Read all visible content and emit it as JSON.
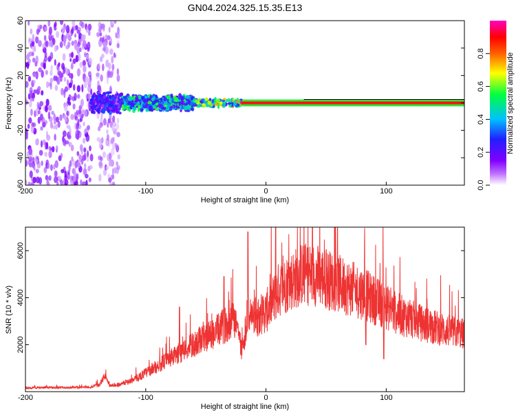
{
  "figure": {
    "title": "GN04.2024.325.15.35.E13"
  },
  "chart_data": [
    {
      "type": "heatmap",
      "xlabel": "Height of straight line (km)",
      "ylabel": "Frequency (Hz)",
      "xlim": [
        -200,
        165
      ],
      "ylim": [
        -60,
        60
      ],
      "x_ticks": [
        -200,
        -100,
        0,
        100
      ],
      "y_ticks": [
        -60,
        -40,
        -20,
        0,
        20,
        40,
        60
      ],
      "colorbar": {
        "label": "Normalized spectral amplitude",
        "range": [
          0.0,
          1.0
        ],
        "ticks": [
          0.0,
          0.2,
          0.4,
          0.6,
          0.8
        ],
        "colormap": [
          "#ffffff",
          "#8000ff",
          "#2020ff",
          "#00c0ff",
          "#00ff40",
          "#ffff00",
          "#ff6000",
          "#ff0000",
          "#ff00c0"
        ]
      },
      "regions": [
        {
          "x": [
            -200,
            -145
          ],
          "freq_half_width": 60,
          "amplitude": 0.12
        },
        {
          "x": [
            -140,
            -122
          ],
          "freq_half_width": 60,
          "amplitude": 0.08
        },
        {
          "x": [
            -145,
            -120
          ],
          "freq_half_width": 8,
          "amplitude": 0.25
        },
        {
          "x": [
            -120,
            -60
          ],
          "freq_half_width": 6,
          "amplitude": 0.45
        },
        {
          "x": [
            -60,
            -20
          ],
          "freq_half_width": 3,
          "amplitude": 0.6
        },
        {
          "x": [
            -20,
            165
          ],
          "freq_half_width": 1,
          "amplitude": 0.95
        }
      ],
      "grid": false
    },
    {
      "type": "line",
      "xlabel": "Height of straight line (km)",
      "ylabel": "SNR (10 * v/v)",
      "xlim": [
        -200,
        165
      ],
      "ylim": [
        0,
        7000
      ],
      "x_ticks": [
        -200,
        -100,
        0,
        100
      ],
      "y_ticks": [
        2000,
        4000,
        6000
      ],
      "series": [
        {
          "color": "#ee3333",
          "x": [
            -200,
            -180,
            -160,
            -145,
            -138,
            -134,
            -130,
            -122,
            -110,
            -100,
            -90,
            -80,
            -70,
            -60,
            -50,
            -40,
            -30,
            -25,
            -20,
            -15,
            -10,
            -5,
            0,
            5,
            10,
            20,
            30,
            40,
            50,
            60,
            70,
            80,
            90,
            100,
            110,
            120,
            130,
            140,
            150,
            165
          ],
          "y": [
            150,
            180,
            170,
            200,
            300,
            700,
            250,
            300,
            500,
            800,
            1100,
            1400,
            1700,
            2000,
            2300,
            2600,
            3000,
            3100,
            1700,
            3400,
            3100,
            3300,
            3400,
            3800,
            4300,
            4700,
            5000,
            5000,
            4800,
            4600,
            4400,
            4200,
            3900,
            3600,
            3300,
            3100,
            2900,
            2750,
            2600,
            2450
          ]
        }
      ],
      "spikes": [
        {
          "x": -72,
          "y": 3600
        },
        {
          "x": -35,
          "y": 4900
        },
        {
          "x": -15,
          "y": 6800
        },
        {
          "x": 8,
          "y": 7000
        },
        {
          "x": 83,
          "y": 6000
        },
        {
          "x": 98,
          "y": 5900
        }
      ],
      "dips": [
        {
          "x": 83,
          "y": 2000
        },
        {
          "x": 98,
          "y": 1400
        }
      ],
      "grid": false
    }
  ]
}
